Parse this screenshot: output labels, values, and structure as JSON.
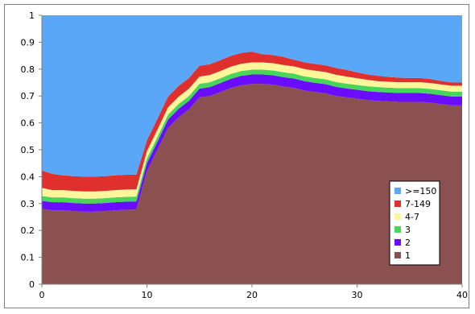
{
  "chart_data": {
    "type": "area",
    "stacked": true,
    "x": [
      0,
      1,
      2,
      3,
      4,
      5,
      6,
      7,
      8,
      9,
      10,
      11,
      12,
      13,
      14,
      15,
      16,
      17,
      18,
      19,
      20,
      21,
      22,
      23,
      24,
      25,
      26,
      27,
      28,
      29,
      30,
      31,
      32,
      33,
      34,
      35,
      36,
      37,
      38,
      39,
      40
    ],
    "xlim": [
      0,
      40
    ],
    "ylim": [
      0,
      1
    ],
    "x_ticks": [
      0,
      10,
      20,
      30,
      40
    ],
    "y_ticks": [
      0,
      0.1,
      0.2,
      0.3,
      0.4,
      0.5,
      0.6,
      0.7,
      0.8,
      0.9,
      1
    ],
    "x_tick_labels": [
      "0",
      "10",
      "20",
      "30",
      "40"
    ],
    "y_tick_labels": [
      "0",
      "0.1",
      "0.2",
      "0.3",
      "0.4",
      "0.5",
      "0.6",
      "0.7",
      "0.8",
      "0.9",
      "1"
    ],
    "grid": false,
    "legend_position": "right-bottom",
    "series": [
      {
        "name": "1",
        "color": "#8B5050",
        "values": [
          0.28,
          0.275,
          0.275,
          0.272,
          0.27,
          0.27,
          0.272,
          0.275,
          0.277,
          0.278,
          0.42,
          0.5,
          0.58,
          0.62,
          0.65,
          0.695,
          0.7,
          0.715,
          0.73,
          0.74,
          0.745,
          0.745,
          0.742,
          0.735,
          0.73,
          0.72,
          0.715,
          0.71,
          0.7,
          0.695,
          0.69,
          0.685,
          0.682,
          0.68,
          0.678,
          0.678,
          0.678,
          0.675,
          0.67,
          0.665,
          0.665
        ]
      },
      {
        "name": "2",
        "color": "#6A0DFF",
        "values": [
          0.03,
          0.03,
          0.03,
          0.03,
          0.03,
          0.03,
          0.03,
          0.03,
          0.03,
          0.03,
          0.03,
          0.03,
          0.032,
          0.032,
          0.032,
          0.032,
          0.033,
          0.033,
          0.034,
          0.035,
          0.035,
          0.035,
          0.035,
          0.035,
          0.035,
          0.035,
          0.034,
          0.034,
          0.034,
          0.033,
          0.033,
          0.033,
          0.033,
          0.033,
          0.033,
          0.033,
          0.033,
          0.033,
          0.033,
          0.033,
          0.033
        ]
      },
      {
        "name": "3",
        "color": "#47D65A",
        "values": [
          0.018,
          0.018,
          0.018,
          0.018,
          0.018,
          0.018,
          0.018,
          0.018,
          0.018,
          0.018,
          0.018,
          0.018,
          0.018,
          0.018,
          0.018,
          0.018,
          0.018,
          0.018,
          0.018,
          0.018,
          0.018,
          0.018,
          0.018,
          0.018,
          0.018,
          0.018,
          0.018,
          0.018,
          0.018,
          0.018,
          0.018,
          0.018,
          0.018,
          0.018,
          0.018,
          0.018,
          0.018,
          0.018,
          0.018,
          0.018,
          0.018
        ]
      },
      {
        "name": "4-7",
        "color": "#FFF59A",
        "values": [
          0.03,
          0.027,
          0.027,
          0.027,
          0.027,
          0.027,
          0.027,
          0.027,
          0.027,
          0.027,
          0.027,
          0.027,
          0.027,
          0.027,
          0.027,
          0.027,
          0.027,
          0.027,
          0.027,
          0.027,
          0.027,
          0.027,
          0.027,
          0.027,
          0.027,
          0.027,
          0.027,
          0.027,
          0.027,
          0.026,
          0.025,
          0.024,
          0.022,
          0.022,
          0.022,
          0.022,
          0.022,
          0.022,
          0.022,
          0.022,
          0.022
        ]
      },
      {
        "name": "7-149",
        "color": "#E0302E",
        "values": [
          0.065,
          0.06,
          0.055,
          0.055,
          0.055,
          0.055,
          0.055,
          0.055,
          0.055,
          0.055,
          0.04,
          0.04,
          0.04,
          0.04,
          0.04,
          0.04,
          0.04,
          0.04,
          0.04,
          0.04,
          0.04,
          0.03,
          0.03,
          0.03,
          0.025,
          0.025,
          0.025,
          0.025,
          0.025,
          0.025,
          0.022,
          0.02,
          0.02,
          0.018,
          0.017,
          0.016,
          0.016,
          0.015,
          0.013,
          0.012,
          0.012
        ]
      },
      {
        "name": ">=150",
        "color": "#5BA7F7",
        "values": [
          0.577,
          0.59,
          0.595,
          0.598,
          0.6,
          0.6,
          0.598,
          0.595,
          0.593,
          0.592,
          0.465,
          0.385,
          0.303,
          0.263,
          0.233,
          0.188,
          0.182,
          0.167,
          0.151,
          0.14,
          0.135,
          0.145,
          0.148,
          0.155,
          0.165,
          0.175,
          0.181,
          0.186,
          0.196,
          0.203,
          0.212,
          0.22,
          0.225,
          0.229,
          0.232,
          0.233,
          0.233,
          0.237,
          0.244,
          0.25,
          0.25
        ]
      }
    ]
  }
}
